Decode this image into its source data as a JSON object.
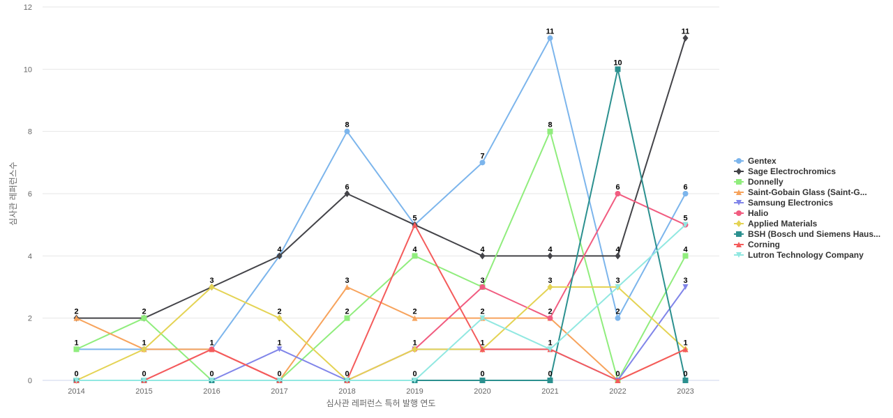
{
  "chart_data": {
    "type": "line",
    "title": "",
    "xlabel": "심사관 레퍼런스 특허 발행 연도",
    "ylabel": "심사관 레퍼런스수",
    "x": [
      "2014",
      "2015",
      "2016",
      "2017",
      "2018",
      "2019",
      "2020",
      "2021",
      "2022",
      "2023"
    ],
    "ylim": [
      0,
      12
    ],
    "yticks": [
      0,
      2,
      4,
      6,
      8,
      10,
      12
    ],
    "grid": true,
    "legend_position": "right",
    "series": [
      {
        "name": "Gentex",
        "color": "#7cb5ec",
        "marker": "circle",
        "values": [
          1,
          1,
          1,
          4,
          8,
          5,
          7,
          11,
          2,
          6
        ]
      },
      {
        "name": "Sage Electrochromics",
        "color": "#434348",
        "marker": "diamond",
        "values": [
          2,
          2,
          3,
          4,
          6,
          5,
          4,
          4,
          4,
          11
        ]
      },
      {
        "name": "Donnelly",
        "color": "#90ed7d",
        "marker": "square",
        "values": [
          1,
          2,
          0,
          0,
          2,
          4,
          3,
          8,
          0,
          4
        ]
      },
      {
        "name": "Saint-Gobain Glass (Saint-G...",
        "color": "#f7a35c",
        "marker": "triangle",
        "values": [
          2,
          1,
          1,
          0,
          3,
          2,
          2,
          2,
          0,
          1
        ]
      },
      {
        "name": "Samsung Electronics",
        "color": "#8085e9",
        "marker": "triangle-down",
        "values": [
          0,
          0,
          0,
          1,
          0,
          1,
          1,
          1,
          0,
          3
        ]
      },
      {
        "name": "Halio",
        "color": "#f15c80",
        "marker": "circle",
        "values": [
          0,
          0,
          1,
          0,
          0,
          1,
          3,
          2,
          6,
          5
        ]
      },
      {
        "name": "Applied Materials",
        "color": "#e4d354",
        "marker": "diamond",
        "values": [
          0,
          1,
          3,
          2,
          0,
          1,
          1,
          3,
          3,
          1
        ]
      },
      {
        "name": "BSH (Bosch und Siemens Haus...",
        "color": "#2b908f",
        "marker": "square",
        "values": [
          0,
          0,
          0,
          0,
          0,
          0,
          0,
          0,
          10,
          0
        ]
      },
      {
        "name": "Corning",
        "color": "#f45b5b",
        "marker": "triangle",
        "values": [
          0,
          0,
          1,
          0,
          0,
          5,
          1,
          1,
          0,
          1
        ]
      },
      {
        "name": "Lutron Technology Company",
        "color": "#91e8e1",
        "marker": "triangle-down",
        "values": [
          0,
          0,
          0,
          0,
          0,
          0,
          2,
          1,
          3,
          5
        ]
      }
    ],
    "top_labels": [
      {
        "x": "2014",
        "values": [
          2,
          1,
          0
        ]
      },
      {
        "x": "2015",
        "values": [
          2,
          1,
          0
        ]
      },
      {
        "x": "2016",
        "values": [
          3,
          1,
          0
        ]
      },
      {
        "x": "2017",
        "values": [
          4,
          2,
          1,
          0
        ]
      },
      {
        "x": "2018",
        "values": [
          8,
          6,
          3,
          2,
          0
        ]
      },
      {
        "x": "2019",
        "values": [
          5,
          4,
          2,
          1,
          0
        ]
      },
      {
        "x": "2020",
        "values": [
          7,
          4,
          3,
          2,
          1,
          0
        ]
      },
      {
        "x": "2021",
        "values": [
          11,
          8,
          4,
          3,
          2,
          1,
          0
        ]
      },
      {
        "x": "2022",
        "values": [
          10,
          6,
          4,
          3,
          2,
          0
        ]
      },
      {
        "x": "2023",
        "values": [
          11,
          6,
          5,
          4,
          3,
          1,
          0
        ]
      }
    ]
  }
}
